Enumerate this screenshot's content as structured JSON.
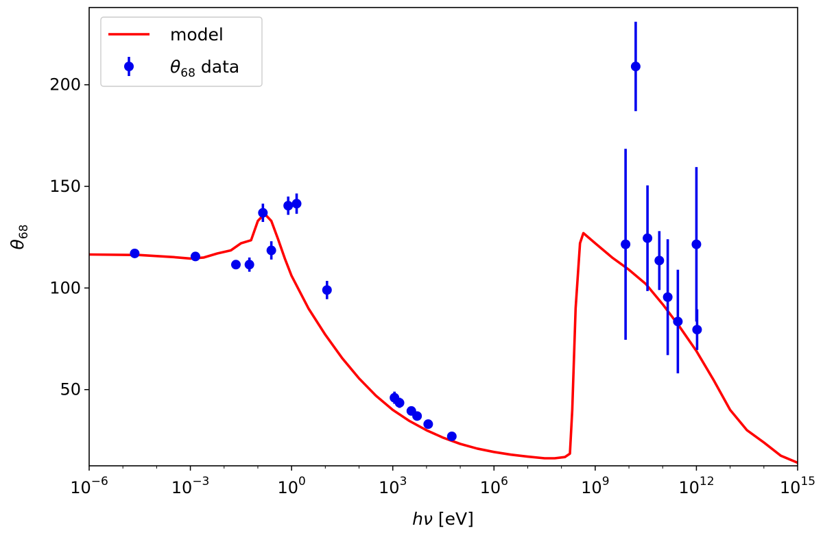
{
  "chart_data": {
    "type": "line+errorbar",
    "xscale": "log",
    "xlim_exp": [
      -6,
      15
    ],
    "ylim": [
      12.5,
      238
    ],
    "xlabel": {
      "italic": "hν",
      "unit": " [eV]"
    },
    "ylabel": {
      "symbol": "θ",
      "sub": "68"
    },
    "x_ticks": [
      {
        "base": "10",
        "exp": "−6",
        "value": -6
      },
      {
        "base": "10",
        "exp": "−3",
        "value": -3
      },
      {
        "base": "10",
        "exp": "0",
        "value": 0
      },
      {
        "base": "10",
        "exp": "3",
        "value": 3
      },
      {
        "base": "10",
        "exp": "6",
        "value": 6
      },
      {
        "base": "10",
        "exp": "9",
        "value": 9
      },
      {
        "base": "10",
        "exp": "12",
        "value": 12
      },
      {
        "base": "10",
        "exp": "15",
        "value": 15
      }
    ],
    "y_ticks": [
      "50",
      "100",
      "150",
      "200"
    ],
    "legend": {
      "position": "top-left",
      "entries": [
        {
          "label": "model",
          "style": "line",
          "color": "#ff0000"
        },
        {
          "symbol": "θ",
          "sub": "68",
          "label_suffix": " data",
          "style": "errorbar",
          "color": "#0000ee"
        }
      ]
    },
    "series": [
      {
        "name": "model",
        "color": "#ff0000",
        "log10_x": [
          -6.0,
          -4.5,
          -3.5,
          -3.0,
          -2.6,
          -2.2,
          -1.8,
          -1.5,
          -1.2,
          -1.0,
          -0.8,
          -0.6,
          -0.4,
          -0.2,
          0.0,
          0.5,
          1.0,
          1.5,
          2.0,
          2.5,
          3.0,
          3.5,
          4.0,
          4.5,
          5.0,
          5.5,
          6.0,
          6.5,
          7.0,
          7.5,
          7.8,
          8.1,
          8.25,
          8.32,
          8.42,
          8.55,
          8.65,
          9.0,
          9.5,
          10.0,
          10.5,
          11.0,
          11.5,
          12.0,
          12.5,
          13.0,
          13.5,
          14.0,
          14.5,
          15.0
        ],
        "y": [
          116.5,
          116.2,
          115.2,
          114.5,
          115.0,
          117.0,
          118.5,
          122.0,
          123.5,
          133.0,
          136.5,
          133.0,
          124.0,
          114.5,
          106.0,
          90.0,
          77.0,
          65.5,
          55.5,
          47.0,
          40.0,
          34.5,
          30.0,
          26.3,
          23.3,
          21.0,
          19.3,
          18.0,
          17.0,
          16.2,
          16.2,
          16.8,
          18.5,
          40.0,
          90.0,
          122.0,
          127.0,
          122.0,
          115.0,
          109.0,
          102.0,
          92.0,
          81.0,
          69.0,
          55.0,
          40.0,
          30.0,
          24.0,
          17.5,
          14.0
        ]
      },
      {
        "name": "θ68 data",
        "color": "#0000ee",
        "log10_x": [
          -4.65,
          -2.85,
          -1.65,
          -1.25,
          -0.85,
          -0.6,
          -0.1,
          0.15,
          1.05,
          3.05,
          3.2,
          3.55,
          3.72,
          4.05,
          4.75,
          9.9,
          10.2,
          10.55,
          10.9,
          11.15,
          11.45,
          12.0,
          12.02
        ],
        "y": [
          117.0,
          115.5,
          111.5,
          111.5,
          137.0,
          118.5,
          140.5,
          141.5,
          99.0,
          46.0,
          43.5,
          39.5,
          37.0,
          33.0,
          27.0,
          121.5,
          209.0,
          124.5,
          113.5,
          95.5,
          83.5,
          121.5,
          79.5
        ],
        "yerr": [
          0,
          0,
          0,
          3.5,
          4.5,
          4.5,
          4.5,
          5.0,
          4.5,
          3.0,
          2.5,
          2.0,
          2.0,
          2.0,
          0,
          47.0,
          22.0,
          26.0,
          14.5,
          28.5,
          25.5,
          38.0,
          10.0
        ]
      }
    ]
  }
}
